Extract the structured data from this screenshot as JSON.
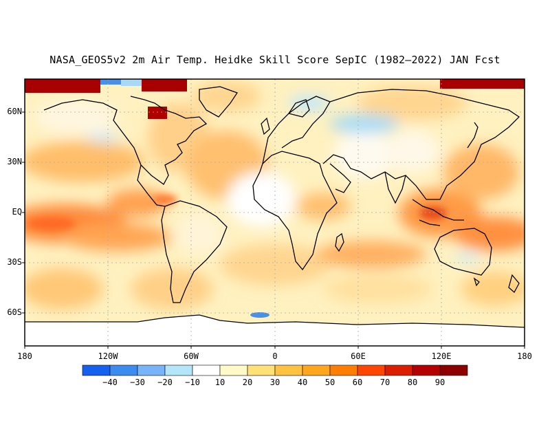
{
  "title": "NASA_GEOS5v2 2m Air Temp. Heidke Skill Score SepIC (1982–2022) JAN Fcst",
  "lat_labels": [
    "60N",
    "30N",
    "EQ",
    "30S",
    "60S"
  ],
  "lon_labels": [
    "180",
    "120W",
    "60W",
    "0",
    "60E",
    "120E",
    "180"
  ],
  "colorbar": {
    "colors": [
      "#1560ec",
      "#3c8cf0",
      "#78b4f8",
      "#b4e6fa",
      "#ffffff",
      "#fffac8",
      "#ffe178",
      "#ffc341",
      "#ffa51e",
      "#ff7d00",
      "#ff4600",
      "#dc1e00",
      "#b40000",
      "#8c0000"
    ],
    "labels": [
      "−40",
      "−30",
      "−20",
      "−10",
      "10",
      "20",
      "30",
      "40",
      "50",
      "60",
      "70",
      "80",
      "90"
    ]
  }
}
